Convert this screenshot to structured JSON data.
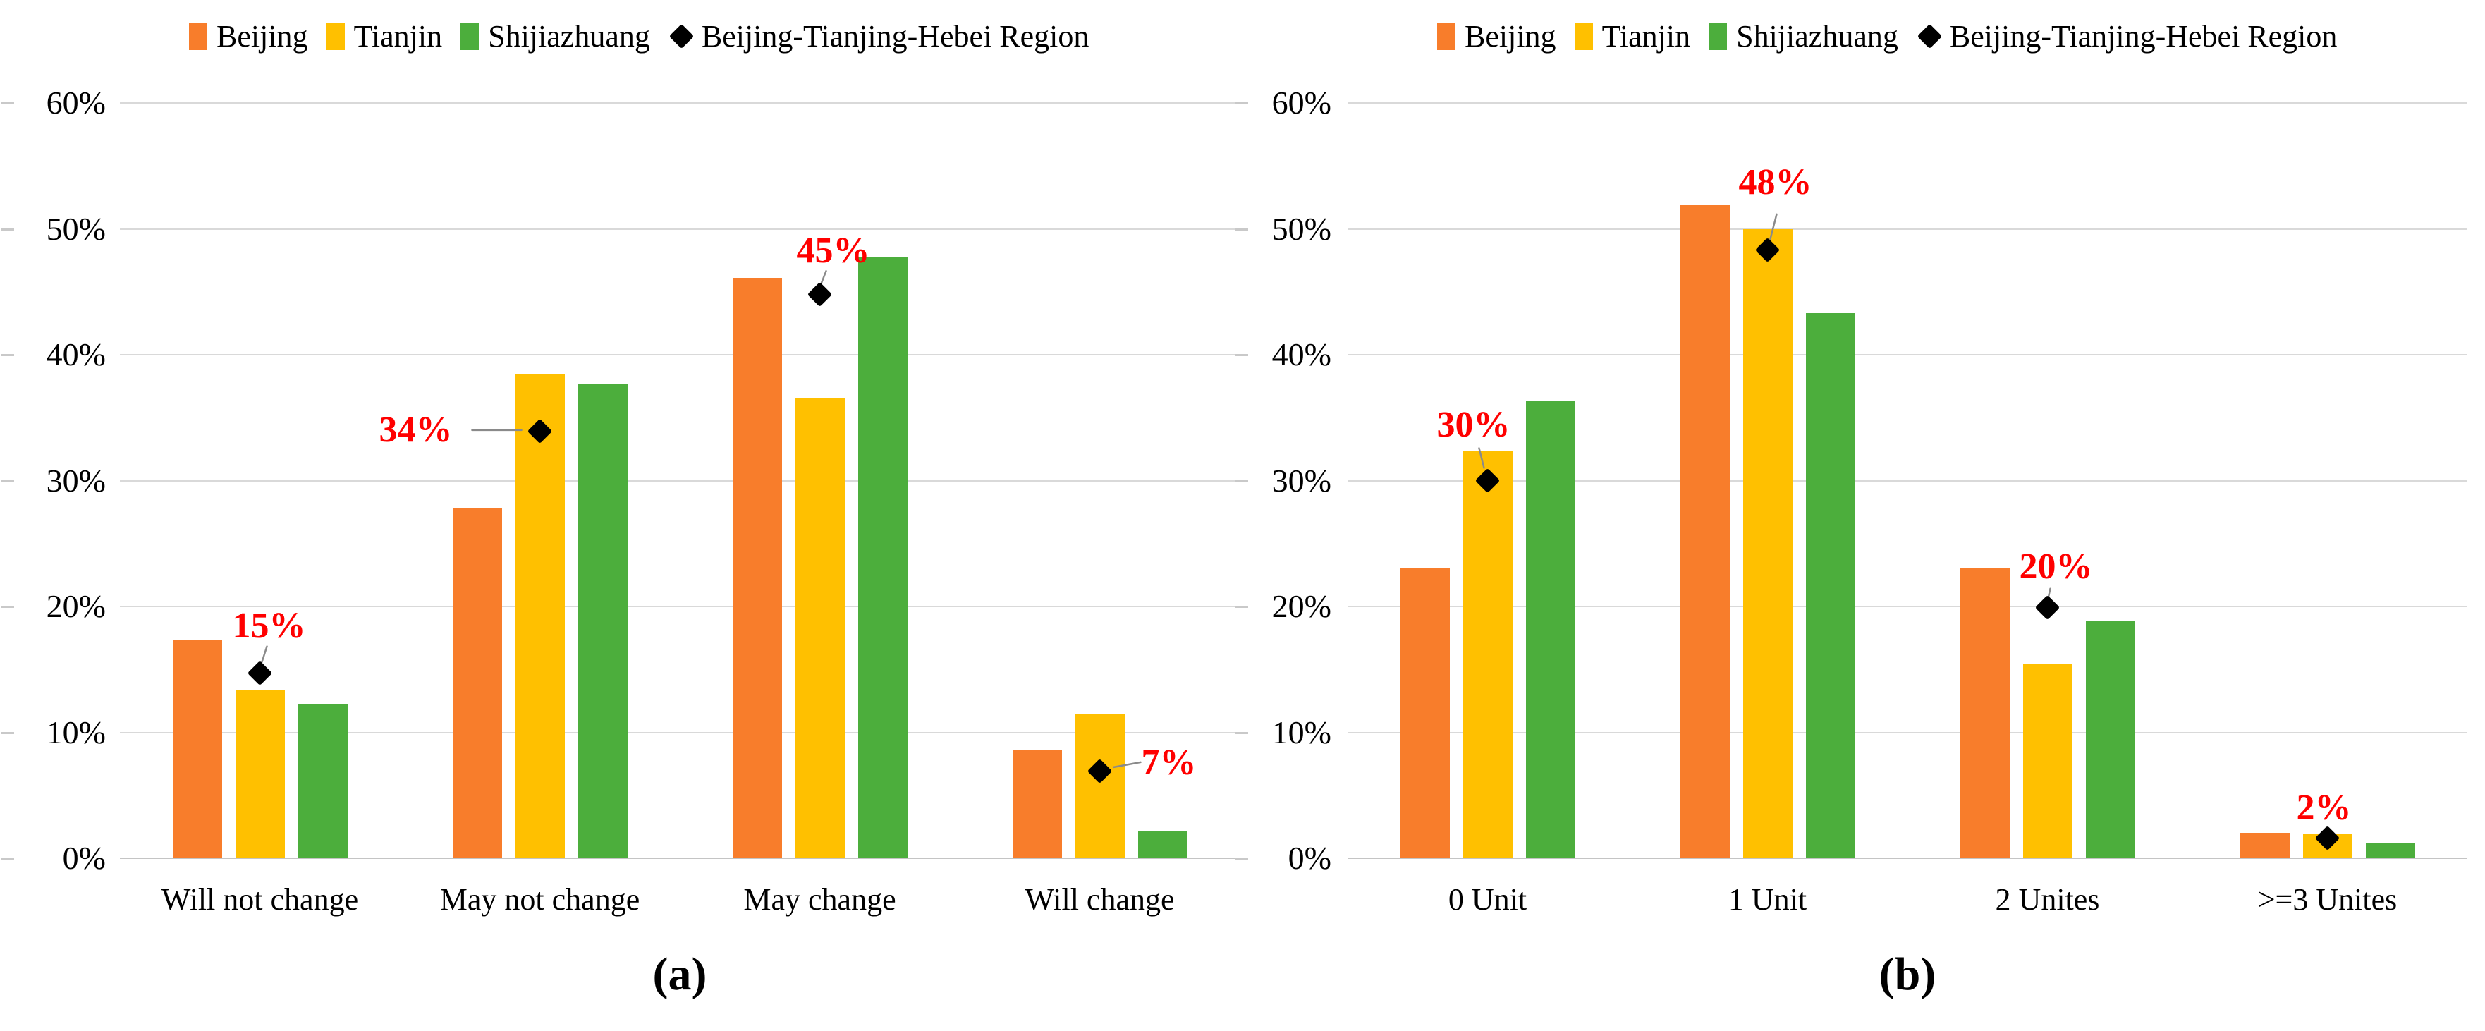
{
  "figure": {
    "background": "#ffffff",
    "text_color": "#000000"
  },
  "legend": {
    "position": "top",
    "items": [
      {
        "label": "Beijing",
        "color": "#F87D2B",
        "marker": "square"
      },
      {
        "label": "Tianjin",
        "color": "#FFC000",
        "marker": "square"
      },
      {
        "label": "Shijiazhuang",
        "color": "#4CAE3C",
        "marker": "square"
      },
      {
        "label": "Beijing-Tianjing-Hebei Region",
        "color": "#000000",
        "marker": "diamond"
      }
    ]
  },
  "axis": {
    "y_ticks": [
      "0%",
      "10%",
      "20%",
      "30%",
      "40%",
      "50%",
      "60%"
    ],
    "y_min": 0,
    "y_max": 60,
    "grid_color": "#D9D9D9"
  },
  "annotation_style": {
    "label_color": "#FF0000",
    "leader_color": "#8A8A8A"
  },
  "chart_data": [
    {
      "type": "bar",
      "panel": "a",
      "caption": "(a)",
      "categories": [
        "Will not change",
        "May not change",
        "May change",
        "Will change"
      ],
      "series": [
        {
          "name": "Beijing",
          "color": "#F87D2B",
          "values": [
            17.3,
            27.8,
            46.1,
            8.6
          ]
        },
        {
          "name": "Tianjin",
          "color": "#FFC000",
          "values": [
            13.4,
            38.5,
            36.6,
            11.5
          ]
        },
        {
          "name": "Shijiazhuang",
          "color": "#4CAE3C",
          "values": [
            12.2,
            37.7,
            47.8,
            2.2
          ]
        }
      ],
      "point_series": {
        "name": "Beijing-Tianjing-Hebei Region",
        "marker": "diamond",
        "color": "#000000",
        "values": [
          14.7,
          33.9,
          44.8,
          6.9
        ],
        "labels": [
          "15%",
          "34%",
          "45%",
          "7%"
        ]
      },
      "ylim": [
        0,
        60
      ],
      "grid": true,
      "legend_position": "top"
    },
    {
      "type": "bar",
      "panel": "b",
      "caption": "(b)",
      "categories": [
        "0 Unit",
        "1 Unit",
        "2 Unites",
        ">=3 Unites"
      ],
      "series": [
        {
          "name": "Beijing",
          "color": "#F87D2B",
          "values": [
            23.0,
            51.9,
            23.0,
            2.0
          ]
        },
        {
          "name": "Tianjin",
          "color": "#FFC000",
          "values": [
            32.4,
            50.0,
            15.4,
            1.9
          ]
        },
        {
          "name": "Shijiazhuang",
          "color": "#4CAE3C",
          "values": [
            36.3,
            43.3,
            18.8,
            1.2
          ]
        }
      ],
      "point_series": {
        "name": "Beijing-Tianjing-Hebei Region",
        "marker": "diamond",
        "color": "#000000",
        "values": [
          30.0,
          48.3,
          19.9,
          1.6
        ],
        "labels": [
          "30%",
          "48%",
          "20%",
          "2%"
        ]
      },
      "ylim": [
        0,
        60
      ],
      "grid": true,
      "legend_position": "top"
    }
  ]
}
